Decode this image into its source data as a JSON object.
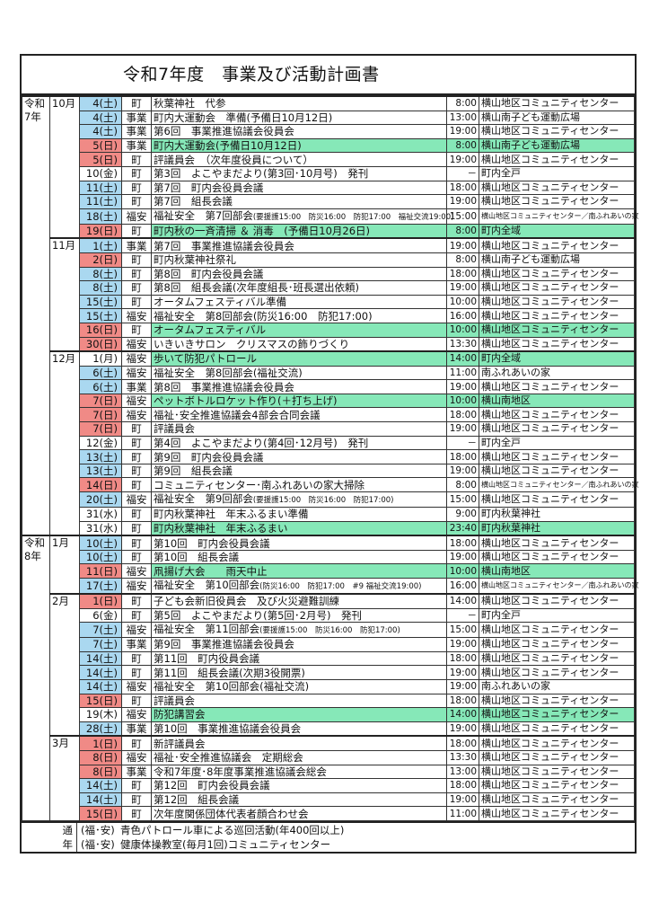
{
  "title": "令和7年度　事業及び活動計画書",
  "colors": {
    "saturday": "#aad8f0",
    "sunday": "#f08a86",
    "highlight": "#86e8b8"
  },
  "groups": [
    {
      "era": [
        "令和",
        "7年"
      ],
      "months": [
        {
          "month": "10月",
          "rows": [
            {
              "date": "4(土)",
              "day": "sat",
              "cat": "町",
              "event": "秋葉神社　代参",
              "time": "8:00",
              "place": "横山地区コミュニティセンター"
            },
            {
              "date": "4(土)",
              "day": "sat",
              "cat": "事業",
              "event": "町内大運動会　準備(予備日10月12日)",
              "time": "13:00",
              "place": "横山南子ども運動広場"
            },
            {
              "date": "4(土)",
              "day": "sat",
              "cat": "事業",
              "event": "第6回　事業推進協議会役員会",
              "time": "19:00",
              "place": "横山地区コミュニティセンター"
            },
            {
              "date": "5(日)",
              "day": "sun",
              "cat": "事業",
              "event": "町内大運動会(予備日10月12日)",
              "time": "8:00",
              "place": "横山南子ども運動広場",
              "highlight": true
            },
            {
              "date": "5(日)",
              "day": "sun",
              "cat": "町",
              "event": "評議員会　（次年度役員について）",
              "time": "19:00",
              "place": "横山地区コミュニティセンター"
            },
            {
              "date": "10(金)",
              "day": "",
              "cat": "町",
              "event": "第3回　よこやまだより(第3回･10月号)　発刊",
              "time": "－",
              "place": "町内全戸"
            },
            {
              "date": "11(土)",
              "day": "sat",
              "cat": "町",
              "event": "第7回　町内会役員会議",
              "time": "18:00",
              "place": "横山地区コミュニティセンター"
            },
            {
              "date": "11(土)",
              "day": "sat",
              "cat": "町",
              "event": "第7回　組長会議",
              "time": "19:00",
              "place": "横山地区コミュニティセンター"
            },
            {
              "date": "18(土)",
              "day": "sat",
              "cat": "福安",
              "event": "福祉安全　第7回部会",
              "note": "(要援護15:00　防災16:00　防犯17:00　福祉交流19:00)",
              "time": "15:00",
              "place": "横山地区コミュニティセンター／南ふれあいの家"
            },
            {
              "date": "19(日)",
              "day": "sun",
              "cat": "町",
              "event": "町内秋の一斉清掃 ＆ 消毒　(予備日10月26日)",
              "time": "8:00",
              "place": "町内全域",
              "highlight": true
            }
          ]
        },
        {
          "month": "11月",
          "rows": [
            {
              "date": "1(土)",
              "day": "sat",
              "cat": "事業",
              "event": "第7回　事業推進協議会役員会",
              "time": "19:00",
              "place": "横山地区コミュニティセンター"
            },
            {
              "date": "2(日)",
              "day": "sun",
              "cat": "町",
              "event": "町内秋葉神社祭礼",
              "time": "8:00",
              "place": "横山南子ども運動広場"
            },
            {
              "date": "8(土)",
              "day": "sat",
              "cat": "町",
              "event": "第8回　町内会役員会議",
              "time": "18:00",
              "place": "横山地区コミュニティセンター"
            },
            {
              "date": "8(土)",
              "day": "sat",
              "cat": "町",
              "event": "第8回　組長会議(次年度組長･班長選出依頼)",
              "time": "19:00",
              "place": "横山地区コミュニティセンター"
            },
            {
              "date": "15(土)",
              "day": "sat",
              "cat": "町",
              "event": "オータムフェスティバル準備",
              "time": "10:00",
              "place": "横山地区コミュニティセンター"
            },
            {
              "date": "15(土)",
              "day": "sat",
              "cat": "福安",
              "event": "福祉安全　第8回部会(防災16:00　防犯17:00)",
              "time": "16:00",
              "place": "横山地区コミュニティセンター"
            },
            {
              "date": "16(日)",
              "day": "sun",
              "cat": "町",
              "event": "オータムフェスティバル",
              "time": "10:00",
              "place": "横山地区コミュニティセンター",
              "highlight": true
            },
            {
              "date": "30(日)",
              "day": "sun",
              "cat": "福安",
              "event": "いきいきサロン　クリスマスの飾りづくり",
              "time": "13:30",
              "place": "横山地区コミュニティセンター"
            }
          ]
        },
        {
          "month": "12月",
          "rows": [
            {
              "date": "1(月)",
              "day": "",
              "cat": "福安",
              "event": "歩いて防犯パトロール",
              "time": "14:00",
              "place": "町内全域",
              "highlight": true
            },
            {
              "date": "6(土)",
              "day": "sat",
              "cat": "福安",
              "event": "福祉安全　第8回部会(福祉交流)",
              "time": "11:00",
              "place": "南ふれあいの家"
            },
            {
              "date": "6(土)",
              "day": "sat",
              "cat": "事業",
              "event": "第8回　事業推進協議会役員会",
              "time": "19:00",
              "place": "横山地区コミュニティセンター"
            },
            {
              "date": "7(日)",
              "day": "sun",
              "cat": "福安",
              "event": "ペットボトルロケット作り(＋打ち上げ)",
              "time": "10:00",
              "place": "横山南地区",
              "highlight": true
            },
            {
              "date": "7(日)",
              "day": "sun",
              "cat": "福安",
              "event": "福祉･安全推進協議会4部会合同会議",
              "time": "18:00",
              "place": "横山地区コミュニティセンター"
            },
            {
              "date": "7(日)",
              "day": "sun",
              "cat": "町",
              "event": "評議員会",
              "time": "19:00",
              "place": "横山地区コミュニティセンター"
            },
            {
              "date": "12(金)",
              "day": "",
              "cat": "町",
              "event": "第4回　よこやまだより(第4回･12月号)　発刊",
              "time": "－",
              "place": "町内全戸"
            },
            {
              "date": "13(土)",
              "day": "sat",
              "cat": "町",
              "event": "第9回　町内会役員会議",
              "time": "18:00",
              "place": "横山地区コミュニティセンター"
            },
            {
              "date": "13(土)",
              "day": "sat",
              "cat": "町",
              "event": "第9回　組長会議",
              "time": "19:00",
              "place": "横山地区コミュニティセンター"
            },
            {
              "date": "14(日)",
              "day": "sun",
              "cat": "町",
              "event": "コミュニティセンター･南ふれあいの家大掃除",
              "time": "8:00",
              "place": "横山地区コミュニティセンター／南ふれあいの家"
            },
            {
              "date": "20(土)",
              "day": "sat",
              "cat": "福安",
              "event": "福祉安全　第9回部会",
              "note": "(要援護15:00　防災16:00　防犯17:00)",
              "time": "15:00",
              "place": "横山地区コミュニティセンター"
            },
            {
              "date": "31(水)",
              "day": "",
              "cat": "町",
              "event": "町内秋葉神社　年末ふるまい準備",
              "time": "9:00",
              "place": "町内秋葉神社"
            },
            {
              "date": "31(水)",
              "day": "",
              "cat": "町",
              "event": "町内秋葉神社　年末ふるまい",
              "time": "23:40",
              "place": "町内秋葉神社",
              "highlight": true
            }
          ]
        }
      ]
    },
    {
      "era": [
        "令和",
        "8年"
      ],
      "months": [
        {
          "month": "1月",
          "rows": [
            {
              "date": "10(土)",
              "day": "sat",
              "cat": "町",
              "event": "第10回　町内会役員会議",
              "time": "18:00",
              "place": "横山地区コミュニティセンター"
            },
            {
              "date": "10(土)",
              "day": "sat",
              "cat": "町",
              "event": "第10回　組長会議",
              "time": "19:00",
              "place": "横山地区コミュニティセンター"
            },
            {
              "date": "11(日)",
              "day": "sun",
              "cat": "福安",
              "event": "凧揚げ大会　　雨天中止",
              "time": "10:00",
              "place": "横山南地区",
              "highlight": true
            },
            {
              "date": "17(土)",
              "day": "sat",
              "cat": "福安",
              "event": "福祉安全　第10回部会",
              "note": "(防災16:00　防犯17:00　#9 福祉交流19:00)",
              "time": "16:00",
              "place": "横山地区コミュニティセンター／南ふれあいの家"
            }
          ]
        },
        {
          "month": "2月",
          "rows": [
            {
              "date": "1(日)",
              "day": "sun",
              "cat": "町",
              "event": "子ども会新旧役員会　及び火災避難訓練",
              "time": "14:00",
              "place": "横山地区コミュニティセンター"
            },
            {
              "date": "6(金)",
              "day": "",
              "cat": "町",
              "event": "第5回　よこやまだより(第5回･2月号)　発刊",
              "time": "－",
              "place": "町内全戸"
            },
            {
              "date": "7(土)",
              "day": "sat",
              "cat": "福安",
              "event": "福祉安全　第11回部会",
              "note": "(要援護15:00　防災16:00　防犯17:00)",
              "time": "15:00",
              "place": "横山地区コミュニティセンター"
            },
            {
              "date": "7(土)",
              "day": "sat",
              "cat": "事業",
              "event": "第9回　事業推進協議会役員会",
              "time": "19:00",
              "place": "横山地区コミュニティセンター"
            },
            {
              "date": "14(土)",
              "day": "sat",
              "cat": "町",
              "event": "第11回　町内役員会議",
              "time": "18:00",
              "place": "横山地区コミュニティセンター"
            },
            {
              "date": "14(土)",
              "day": "sat",
              "cat": "町",
              "event": "第11回　組長会議(次期3役開票)",
              "time": "19:00",
              "place": "横山地区コミュニティセンター"
            },
            {
              "date": "14(土)",
              "day": "sat",
              "cat": "福安",
              "event": "福祉安全　第10回部会(福祉交流)",
              "time": "19:00",
              "place": "南ふれあいの家"
            },
            {
              "date": "15(日)",
              "day": "sun",
              "cat": "町",
              "event": "評議員会",
              "time": "18:00",
              "place": "横山地区コミュニティセンター"
            },
            {
              "date": "19(木)",
              "day": "",
              "cat": "福安",
              "event": "防犯講習会",
              "time": "14:00",
              "place": "横山地区コミュニティセンター",
              "highlight": true
            },
            {
              "date": "28(土)",
              "day": "sat",
              "cat": "事業",
              "event": "第10回　事業推進協議会役員会",
              "time": "19:00",
              "place": "横山地区コミュニティセンター"
            }
          ]
        },
        {
          "month": "3月",
          "rows": [
            {
              "date": "1(日)",
              "day": "sun",
              "cat": "町",
              "event": "新評議員会",
              "time": "18:00",
              "place": "横山地区コミュニティセンター"
            },
            {
              "date": "8(日)",
              "day": "sun",
              "cat": "福安",
              "event": "福祉･安全推進協議会　定期総会",
              "time": "13:30",
              "place": "横山地区コミュニティセンター"
            },
            {
              "date": "8(日)",
              "day": "sun",
              "cat": "事業",
              "event": "令和7年度･8年度事業推進協議会総会",
              "time": "13:00",
              "place": "横山地区コミュニティセンター"
            },
            {
              "date": "14(土)",
              "day": "sat",
              "cat": "町",
              "event": "第12回　町内会役員会議",
              "time": "18:00",
              "place": "横山地区コミュニティセンター"
            },
            {
              "date": "14(土)",
              "day": "sat",
              "cat": "町",
              "event": "第12回　組長会議",
              "time": "19:00",
              "place": "横山地区コミュニティセンター"
            },
            {
              "date": "15(日)",
              "day": "sun",
              "cat": "町",
              "event": "次年度関係団体代表者顔合わせ会",
              "time": "11:00",
              "place": "横山地区コミュニティセンター"
            }
          ]
        }
      ]
    }
  ],
  "yearly": {
    "label": [
      "通",
      "年"
    ],
    "items": [
      {
        "cat": "(福･安)",
        "text": "青色パトロール車による巡回活動(年400回以上)"
      },
      {
        "cat": "(福･安)",
        "text": "健康体操教室(毎月1回)コミュニティセンター"
      }
    ]
  }
}
